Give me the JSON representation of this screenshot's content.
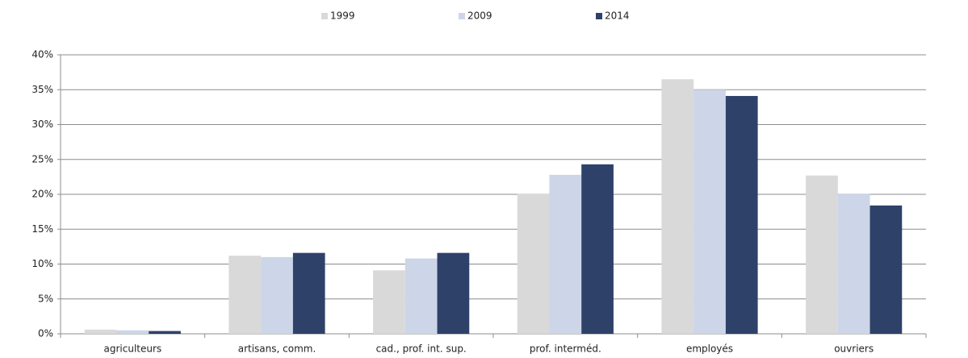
{
  "chart_data": {
    "type": "bar",
    "categories": [
      "agriculteurs",
      "artisans, comm.",
      "cad., prof. int. sup.",
      "prof. interméd.",
      "employés",
      "ouvriers"
    ],
    "series": [
      {
        "name": "1999",
        "color": "#d9d9d9",
        "values": [
          0.6,
          11.2,
          9.1,
          20.1,
          36.5,
          22.7
        ]
      },
      {
        "name": "2009",
        "color": "#cdd5e8",
        "values": [
          0.5,
          11.0,
          10.8,
          22.8,
          35.0,
          20.1
        ]
      },
      {
        "name": "2014",
        "color": "#2e4169",
        "values": [
          0.4,
          11.6,
          11.6,
          24.3,
          34.1,
          18.4
        ]
      }
    ],
    "ylim": [
      0,
      40
    ],
    "yticks": [
      {
        "value": 0,
        "label": "0%"
      },
      {
        "value": 5,
        "label": "5%"
      },
      {
        "value": 10,
        "label": "10%"
      },
      {
        "value": 15,
        "label": "15%"
      },
      {
        "value": 20,
        "label": "20%"
      },
      {
        "value": 25,
        "label": "25%"
      },
      {
        "value": 30,
        "label": "30%"
      },
      {
        "value": 35,
        "label": "35%"
      },
      {
        "value": 40,
        "label": "40%"
      }
    ],
    "grid": true,
    "legend": "top"
  }
}
